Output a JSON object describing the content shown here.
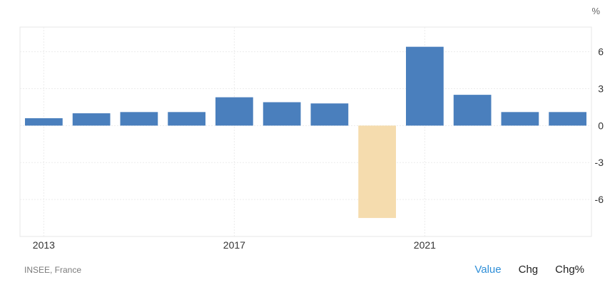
{
  "chart_data": {
    "type": "bar",
    "unit": "%",
    "categories": [
      "2013",
      "2014",
      "2015",
      "2016",
      "2017",
      "2018",
      "2019",
      "2020",
      "2021",
      "2022",
      "2023",
      "2024"
    ],
    "values": [
      0.6,
      1.0,
      1.1,
      1.1,
      2.3,
      1.9,
      1.8,
      -7.5,
      6.4,
      2.5,
      1.1,
      1.1
    ],
    "x_tick_labels": [
      "2013",
      "2017",
      "2021"
    ],
    "y_ticks": [
      6,
      3,
      0,
      -3,
      -6
    ],
    "ylim": [
      -9,
      8
    ],
    "grid": true,
    "colors": {
      "positive": "#4a7fbd",
      "negative": "#f5dcae"
    }
  },
  "footer": {
    "source": "INSEE, France",
    "tabs": [
      "Value",
      "Chg",
      "Chg%"
    ],
    "active_tab": "Value"
  }
}
